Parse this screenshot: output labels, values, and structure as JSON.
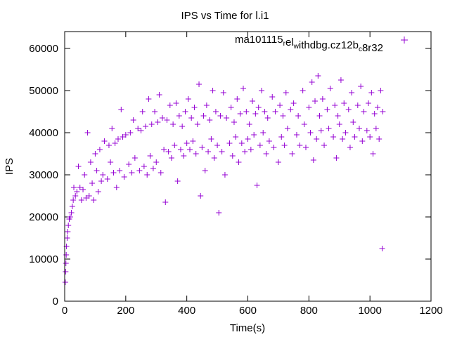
{
  "chart_data": {
    "type": "scatter",
    "title": "IPS vs Time for l.i1",
    "xlabel": "Time(s)",
    "ylabel": "IPS",
    "xlim": [
      0,
      1200
    ],
    "ylim": [
      0,
      64000
    ],
    "xticks": [
      0,
      200,
      400,
      600,
      800,
      1000,
      1200
    ],
    "yticks": [
      0,
      10000,
      20000,
      30000,
      40000,
      50000,
      60000
    ],
    "grid": false,
    "legend_position": "top-right",
    "series": [
      {
        "name": "ma101115_rel_withdbg.cz12b_c8r32",
        "legend_parts": [
          {
            "t": "ma101115",
            "sub": false
          },
          {
            "t": "r",
            "sub": true
          },
          {
            "t": "el",
            "sub": false
          },
          {
            "t": "w",
            "sub": true
          },
          {
            "t": "ithdbg.cz12b",
            "sub": false
          },
          {
            "t": "c",
            "sub": true
          },
          {
            "t": "8r32",
            "sub": false
          }
        ],
        "color": "#9400d3",
        "marker": "plus",
        "points": [
          [
            2,
            4500
          ],
          [
            3,
            7000
          ],
          [
            4,
            9000
          ],
          [
            5,
            11000
          ],
          [
            6,
            13000
          ],
          [
            8,
            15000
          ],
          [
            10,
            16500
          ],
          [
            12,
            18000
          ],
          [
            15,
            19500
          ],
          [
            18,
            20000
          ],
          [
            22,
            21000
          ],
          [
            25,
            22500
          ],
          [
            28,
            24000
          ],
          [
            30,
            27000
          ],
          [
            35,
            25000
          ],
          [
            40,
            26000
          ],
          [
            45,
            32000
          ],
          [
            50,
            27000
          ],
          [
            55,
            24000
          ],
          [
            60,
            26500
          ],
          [
            65,
            30000
          ],
          [
            70,
            24500
          ],
          [
            75,
            40000
          ],
          [
            80,
            25000
          ],
          [
            85,
            33000
          ],
          [
            90,
            28000
          ],
          [
            95,
            24000
          ],
          [
            100,
            35000
          ],
          [
            105,
            31000
          ],
          [
            110,
            26000
          ],
          [
            115,
            36000
          ],
          [
            120,
            28500
          ],
          [
            125,
            30000
          ],
          [
            130,
            38000
          ],
          [
            140,
            29000
          ],
          [
            145,
            37000
          ],
          [
            150,
            33000
          ],
          [
            155,
            41000
          ],
          [
            160,
            30500
          ],
          [
            165,
            37500
          ],
          [
            170,
            27000
          ],
          [
            175,
            38500
          ],
          [
            180,
            31000
          ],
          [
            185,
            45500
          ],
          [
            190,
            39000
          ],
          [
            195,
            29500
          ],
          [
            200,
            39500
          ],
          [
            210,
            32500
          ],
          [
            215,
            40000
          ],
          [
            220,
            30500
          ],
          [
            225,
            43000
          ],
          [
            230,
            34000
          ],
          [
            240,
            41000
          ],
          [
            245,
            31000
          ],
          [
            250,
            40500
          ],
          [
            255,
            45000
          ],
          [
            260,
            32000
          ],
          [
            265,
            41500
          ],
          [
            270,
            30000
          ],
          [
            275,
            48000
          ],
          [
            280,
            34500
          ],
          [
            285,
            42000
          ],
          [
            290,
            31500
          ],
          [
            295,
            45000
          ],
          [
            300,
            33000
          ],
          [
            305,
            42500
          ],
          [
            310,
            49000
          ],
          [
            315,
            30500
          ],
          [
            320,
            43500
          ],
          [
            325,
            36000
          ],
          [
            330,
            23500
          ],
          [
            335,
            43000
          ],
          [
            340,
            35500
          ],
          [
            345,
            46500
          ],
          [
            350,
            34000
          ],
          [
            355,
            42000
          ],
          [
            360,
            37000
          ],
          [
            365,
            47000
          ],
          [
            370,
            28500
          ],
          [
            375,
            44000
          ],
          [
            380,
            36000
          ],
          [
            385,
            41500
          ],
          [
            390,
            34500
          ],
          [
            395,
            45000
          ],
          [
            400,
            37500
          ],
          [
            405,
            48000
          ],
          [
            410,
            36000
          ],
          [
            415,
            43500
          ],
          [
            420,
            38000
          ],
          [
            425,
            46000
          ],
          [
            430,
            35000
          ],
          [
            435,
            42000
          ],
          [
            440,
            51500
          ],
          [
            445,
            25000
          ],
          [
            450,
            36500
          ],
          [
            455,
            44000
          ],
          [
            460,
            31000
          ],
          [
            465,
            46500
          ],
          [
            470,
            35500
          ],
          [
            475,
            43000
          ],
          [
            480,
            38500
          ],
          [
            485,
            50000
          ],
          [
            490,
            34000
          ],
          [
            495,
            45000
          ],
          [
            500,
            37000
          ],
          [
            505,
            21000
          ],
          [
            510,
            44000
          ],
          [
            515,
            35500
          ],
          [
            520,
            49500
          ],
          [
            525,
            30000
          ],
          [
            530,
            43500
          ],
          [
            540,
            37500
          ],
          [
            545,
            46000
          ],
          [
            550,
            34500
          ],
          [
            555,
            42500
          ],
          [
            560,
            39000
          ],
          [
            565,
            48000
          ],
          [
            570,
            33000
          ],
          [
            575,
            44500
          ],
          [
            580,
            37500
          ],
          [
            585,
            50500
          ],
          [
            590,
            35500
          ],
          [
            595,
            45000
          ],
          [
            600,
            38500
          ],
          [
            605,
            42000
          ],
          [
            610,
            36000
          ],
          [
            615,
            47500
          ],
          [
            620,
            39500
          ],
          [
            625,
            44500
          ],
          [
            630,
            27500
          ],
          [
            635,
            46000
          ],
          [
            640,
            37000
          ],
          [
            645,
            50000
          ],
          [
            650,
            40000
          ],
          [
            655,
            45000
          ],
          [
            660,
            35000
          ],
          [
            665,
            43500
          ],
          [
            670,
            38000
          ],
          [
            680,
            48500
          ],
          [
            685,
            36500
          ],
          [
            690,
            45000
          ],
          [
            700,
            33000
          ],
          [
            705,
            46500
          ],
          [
            710,
            39000
          ],
          [
            715,
            44000
          ],
          [
            720,
            37000
          ],
          [
            725,
            49500
          ],
          [
            730,
            41000
          ],
          [
            740,
            45500
          ],
          [
            745,
            35000
          ],
          [
            750,
            47000
          ],
          [
            760,
            39500
          ],
          [
            765,
            44000
          ],
          [
            770,
            37000
          ],
          [
            780,
            50000
          ],
          [
            785,
            42000
          ],
          [
            790,
            36500
          ],
          [
            800,
            46000
          ],
          [
            805,
            40000
          ],
          [
            810,
            52000
          ],
          [
            815,
            33500
          ],
          [
            820,
            47500
          ],
          [
            825,
            38500
          ],
          [
            830,
            53500
          ],
          [
            835,
            44000
          ],
          [
            840,
            40500
          ],
          [
            845,
            48000
          ],
          [
            850,
            37000
          ],
          [
            860,
            45500
          ],
          [
            865,
            41000
          ],
          [
            870,
            50500
          ],
          [
            880,
            39000
          ],
          [
            885,
            46500
          ],
          [
            890,
            34000
          ],
          [
            895,
            44000
          ],
          [
            900,
            42000
          ],
          [
            905,
            52500
          ],
          [
            910,
            38500
          ],
          [
            915,
            47000
          ],
          [
            920,
            40000
          ],
          [
            930,
            45500
          ],
          [
            935,
            36500
          ],
          [
            940,
            49500
          ],
          [
            945,
            42500
          ],
          [
            950,
            39000
          ],
          [
            960,
            46500
          ],
          [
            965,
            41000
          ],
          [
            970,
            51000
          ],
          [
            975,
            38000
          ],
          [
            980,
            45000
          ],
          [
            990,
            40500
          ],
          [
            995,
            47000
          ],
          [
            1000,
            39000
          ],
          [
            1005,
            49500
          ],
          [
            1010,
            35000
          ],
          [
            1015,
            44500
          ],
          [
            1020,
            41000
          ],
          [
            1025,
            46000
          ],
          [
            1030,
            38500
          ],
          [
            1035,
            50000
          ],
          [
            1040,
            12500
          ],
          [
            1042,
            45000
          ]
        ]
      }
    ]
  }
}
